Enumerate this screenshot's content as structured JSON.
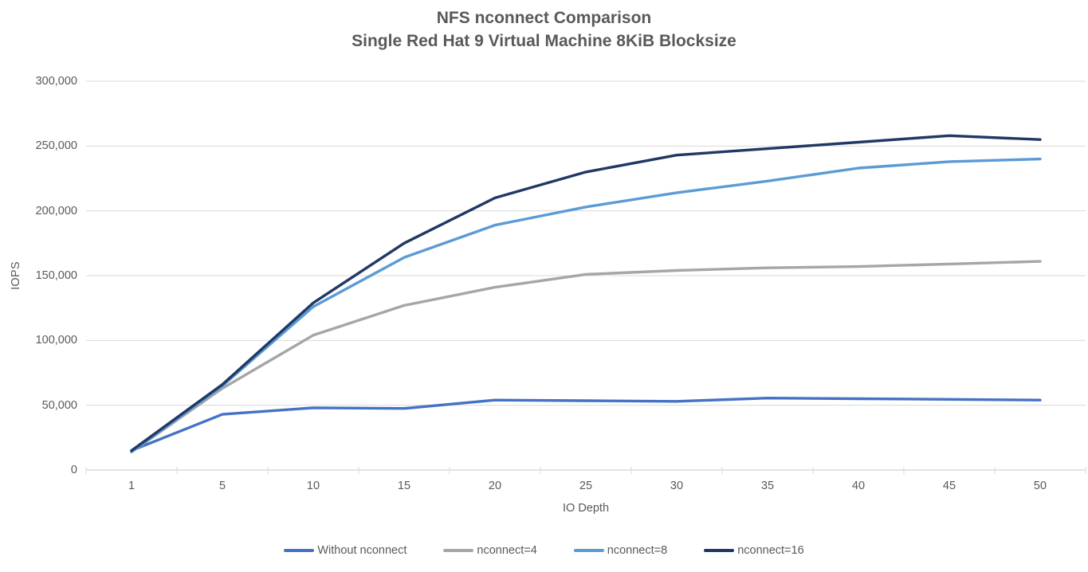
{
  "chart_data": {
    "type": "line",
    "title_line1": "NFS nconnect Comparison",
    "title_line2": "Single Red Hat 9 Virtual Machine 8KiB Blocksize",
    "xlabel": "IO Depth",
    "ylabel": "IOPS",
    "categories": [
      "1",
      "5",
      "10",
      "15",
      "20",
      "25",
      "30",
      "35",
      "40",
      "45",
      "50"
    ],
    "x_axis_title": "IO Depth",
    "ylim": [
      0,
      300000
    ],
    "yticks": [
      0,
      50000,
      100000,
      150000,
      200000,
      250000,
      300000
    ],
    "ytick_labels": [
      "0",
      "50,000",
      "100,000",
      "150,000",
      "200,000",
      "250,000",
      "300,000"
    ],
    "grid": "horizontal",
    "legend_position": "bottom",
    "series": [
      {
        "name": "Without nconnect",
        "color": "#4472C4",
        "values": [
          15000,
          43000,
          48000,
          47500,
          54000,
          53500,
          53000,
          55500,
          55000,
          54500,
          54000
        ]
      },
      {
        "name": "nconnect=4",
        "color": "#A6A6A6",
        "values": [
          14000,
          63000,
          104000,
          127000,
          141000,
          151000,
          154000,
          156000,
          157000,
          159000,
          161000
        ]
      },
      {
        "name": "nconnect=8",
        "color": "#5B9BD5",
        "values": [
          14000,
          65000,
          126000,
          164000,
          189000,
          203000,
          214000,
          223000,
          233000,
          238000,
          240000
        ]
      },
      {
        "name": "nconnect=16",
        "color": "#203864",
        "values": [
          15000,
          66000,
          129000,
          175000,
          210000,
          230000,
          243000,
          248000,
          253000,
          258000,
          255000
        ]
      }
    ],
    "colors": {
      "gridline": "#D9D9D9",
      "axis_line": "#C6C6C6",
      "tick_mark": "#D9D9D9",
      "text": "#595959"
    }
  }
}
